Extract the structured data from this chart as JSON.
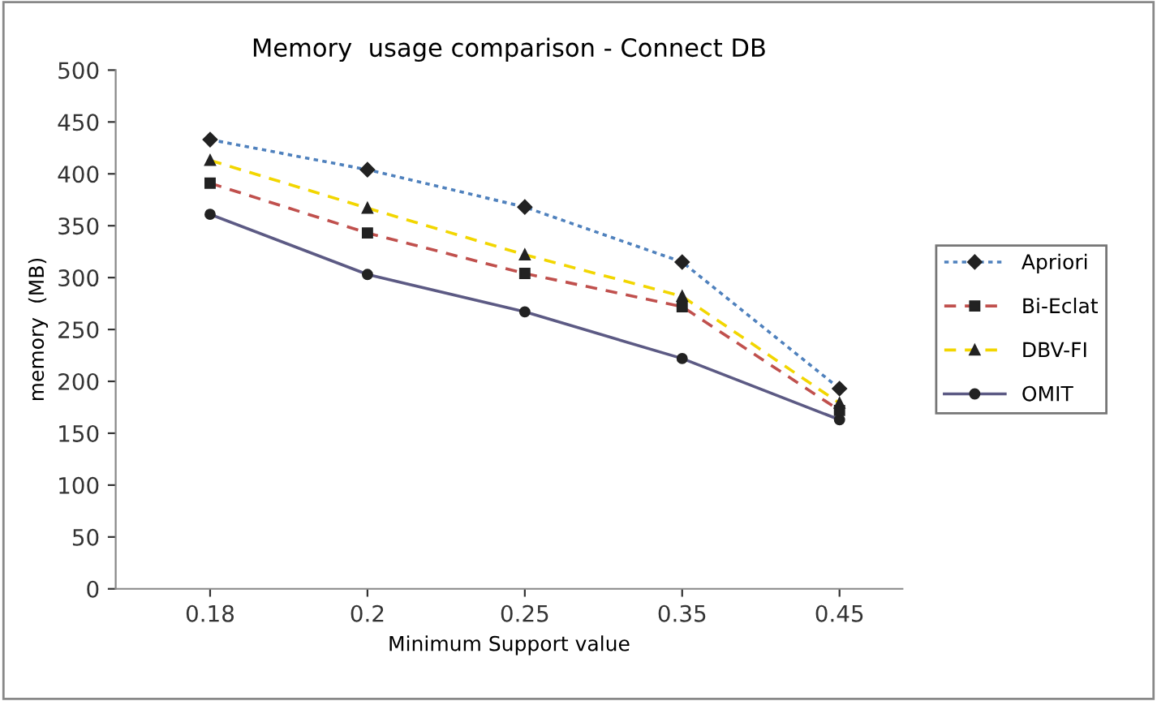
{
  "chart_data": {
    "type": "line",
    "title": "Memory  usage comparison - Connect DB",
    "xlabel": "Minimum Support value",
    "ylabel": "memory  (MB)",
    "categories": [
      "0.18",
      "0.2",
      "0.25",
      "0.35",
      "0.45"
    ],
    "series": [
      {
        "name": "Apriori",
        "color": "#4f81bd",
        "marker": "diamond",
        "line_style": "dotted",
        "values": [
          433,
          404,
          368,
          315,
          193
        ]
      },
      {
        "name": "Bi-Eclat",
        "color": "#c0504d",
        "marker": "square",
        "line_style": "dashed",
        "values": [
          391,
          343,
          304,
          272,
          172
        ]
      },
      {
        "name": "DBV-FI",
        "color": "#f2d600",
        "marker": "triangle",
        "line_style": "dashed",
        "values": [
          413,
          367,
          322,
          282,
          179
        ]
      },
      {
        "name": "OMIT",
        "color": "#5c5a84",
        "marker": "circle",
        "line_style": "solid",
        "values": [
          361,
          303,
          267,
          222,
          163
        ]
      }
    ],
    "ylim": [
      0,
      500
    ],
    "yticks": [
      0,
      50,
      100,
      150,
      200,
      250,
      300,
      350,
      400,
      450,
      500
    ],
    "grid": false,
    "legend": "right"
  }
}
